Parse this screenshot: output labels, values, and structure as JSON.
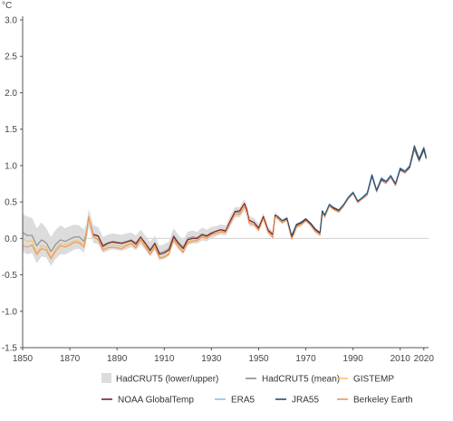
{
  "chart_data": {
    "type": "line",
    "unit": "°C",
    "xlim": [
      1850,
      2022
    ],
    "ylim": [
      -1.5,
      3.0
    ],
    "x_ticks": [
      "1850",
      "1870",
      "1890",
      "1910",
      "1930",
      "1950",
      "1970",
      "1990",
      "2010",
      "2020"
    ],
    "y_ticks": [
      "3.0",
      "2.5",
      "2.0",
      "1.5",
      "1.0",
      "0.5",
      "0.0",
      "-0.5",
      "-1.0",
      "-1.5"
    ],
    "zero_line": true,
    "legend_placement": "bottom",
    "legend": [
      {
        "label": "HadCRUT5 (lower/upper)",
        "kind": "band",
        "color": "#dcdcdc"
      },
      {
        "label": "HadCRUT5 (mean)",
        "kind": "line",
        "color": "#8c8c8c"
      },
      {
        "label": "GISTEMP",
        "kind": "line",
        "color": "#f2c46a"
      },
      {
        "label": "NOAA GlobalTemp",
        "kind": "line",
        "color": "#7a1f2b"
      },
      {
        "label": "ERA5",
        "kind": "line",
        "color": "#7fc8e6"
      },
      {
        "label": "JRA55",
        "kind": "line",
        "color": "#1f4f7a"
      },
      {
        "label": "Berkeley Earth",
        "kind": "line",
        "color": "#f0955a"
      }
    ],
    "x": [
      1850,
      1852,
      1854,
      1856,
      1858,
      1860,
      1862,
      1864,
      1866,
      1868,
      1870,
      1872,
      1874,
      1876,
      1877,
      1878,
      1880,
      1882,
      1884,
      1886,
      1888,
      1890,
      1892,
      1894,
      1896,
      1898,
      1900,
      1902,
      1904,
      1906,
      1908,
      1910,
      1912,
      1914,
      1916,
      1918,
      1920,
      1922,
      1924,
      1926,
      1928,
      1930,
      1932,
      1934,
      1936,
      1938,
      1940,
      1942,
      1944,
      1945,
      1946,
      1948,
      1950,
      1952,
      1954,
      1956,
      1957,
      1958,
      1960,
      1962,
      1964,
      1965,
      1966,
      1968,
      1970,
      1972,
      1974,
      1976,
      1977,
      1978,
      1980,
      1982,
      1984,
      1986,
      1988,
      1990,
      1992,
      1994,
      1996,
      1998,
      2000,
      2002,
      2004,
      2006,
      2008,
      2010,
      2012,
      2014,
      2016,
      2018,
      2020,
      2021
    ],
    "hadcrut_mean": [
      0.08,
      0.04,
      0.04,
      -0.1,
      -0.02,
      -0.06,
      -0.18,
      -0.08,
      -0.02,
      -0.04,
      -0.01,
      0.02,
      0.02,
      -0.04,
      0.08,
      0.28,
      0.06,
      0.04,
      -0.09,
      -0.06,
      -0.04,
      -0.05,
      -0.06,
      -0.04,
      -0.02,
      -0.06,
      0.02,
      -0.06,
      -0.15,
      -0.06,
      -0.2,
      -0.18,
      -0.14,
      0.04,
      -0.05,
      -0.12,
      0.0,
      0.02,
      0.01,
      0.06,
      0.04,
      0.08,
      0.1,
      0.12,
      0.11,
      0.24,
      0.36,
      0.36,
      0.46,
      0.38,
      0.24,
      0.22,
      0.15,
      0.3,
      0.12,
      0.06,
      0.32,
      0.3,
      0.24,
      0.27,
      0.03,
      0.1,
      0.18,
      0.21,
      0.26,
      0.2,
      0.12,
      0.07,
      0.37,
      0.31,
      0.45,
      0.41,
      0.38,
      0.45,
      0.55,
      0.62,
      0.5,
      0.55,
      0.6,
      0.85,
      0.64,
      0.8,
      0.76,
      0.84,
      0.73,
      0.94,
      0.9,
      0.97,
      1.22,
      1.06,
      1.21,
      1.09
    ],
    "gistemp": [
      0.0,
      -0.04,
      -0.03,
      -0.2,
      -0.1,
      -0.12,
      -0.26,
      -0.14,
      -0.07,
      -0.09,
      -0.06,
      -0.03,
      -0.04,
      -0.09,
      0.06,
      0.28,
      0.03,
      0.0,
      -0.14,
      -0.1,
      -0.09,
      -0.1,
      -0.11,
      -0.08,
      -0.05,
      -0.11,
      0.0,
      -0.1,
      -0.2,
      -0.1,
      -0.26,
      -0.24,
      -0.2,
      0.0,
      -0.1,
      -0.17,
      -0.04,
      -0.02,
      -0.02,
      0.03,
      0.02,
      0.06,
      0.08,
      0.1,
      0.09,
      0.22,
      0.34,
      0.34,
      0.46,
      0.37,
      0.22,
      0.2,
      0.12,
      0.28,
      0.09,
      0.02,
      0.3,
      0.28,
      0.22,
      0.26,
      0.0,
      0.07,
      0.16,
      0.19,
      0.25,
      0.19,
      0.1,
      0.05,
      0.36,
      0.3,
      0.45,
      0.4,
      0.37,
      0.45,
      0.56,
      0.63,
      0.5,
      0.56,
      0.61,
      0.88,
      0.66,
      0.83,
      0.77,
      0.86,
      0.74,
      0.97,
      0.92,
      1.0,
      1.28,
      1.1,
      1.26,
      1.14
    ],
    "noaa": [
      null,
      null,
      null,
      null,
      null,
      null,
      null,
      null,
      null,
      null,
      null,
      null,
      null,
      null,
      null,
      null,
      0.05,
      0.03,
      -0.11,
      -0.07,
      -0.05,
      -0.06,
      -0.07,
      -0.05,
      -0.03,
      -0.08,
      0.02,
      -0.07,
      -0.17,
      -0.07,
      -0.22,
      -0.2,
      -0.16,
      0.02,
      -0.07,
      -0.14,
      -0.02,
      0.0,
      0.0,
      0.05,
      0.03,
      0.07,
      0.1,
      0.12,
      0.1,
      0.24,
      0.37,
      0.38,
      0.48,
      0.4,
      0.25,
      0.22,
      0.14,
      0.3,
      0.11,
      0.05,
      0.32,
      0.3,
      0.24,
      0.27,
      0.02,
      0.09,
      0.18,
      0.21,
      0.26,
      0.2,
      0.12,
      0.07,
      0.37,
      0.31,
      0.45,
      0.41,
      0.38,
      0.45,
      0.55,
      0.62,
      0.5,
      0.55,
      0.6,
      0.86,
      0.65,
      0.81,
      0.76,
      0.85,
      0.73,
      0.95,
      0.91,
      0.98,
      1.25,
      1.08,
      1.23,
      1.11
    ],
    "era5": [
      null,
      null,
      null,
      null,
      null,
      null,
      null,
      null,
      null,
      null,
      null,
      null,
      null,
      null,
      null,
      null,
      null,
      null,
      null,
      null,
      null,
      null,
      null,
      null,
      null,
      null,
      null,
      null,
      null,
      null,
      null,
      null,
      null,
      null,
      null,
      null,
      null,
      null,
      null,
      null,
      null,
      null,
      null,
      null,
      null,
      null,
      null,
      null,
      null,
      null,
      null,
      null,
      null,
      null,
      null,
      null,
      null,
      null,
      null,
      null,
      null,
      null,
      null,
      null,
      null,
      null,
      null,
      null,
      null,
      0.32,
      0.46,
      0.42,
      0.39,
      0.47,
      0.57,
      0.64,
      0.52,
      0.57,
      0.63,
      0.88,
      0.67,
      0.84,
      0.79,
      0.87,
      0.76,
      0.97,
      0.93,
      1.0,
      1.26,
      1.1,
      1.25,
      1.12
    ],
    "jra55": [
      null,
      null,
      null,
      null,
      null,
      null,
      null,
      null,
      null,
      null,
      null,
      null,
      null,
      null,
      null,
      null,
      null,
      null,
      null,
      null,
      null,
      null,
      null,
      null,
      null,
      null,
      null,
      null,
      null,
      null,
      null,
      null,
      null,
      null,
      null,
      null,
      null,
      null,
      null,
      null,
      null,
      null,
      null,
      null,
      null,
      null,
      null,
      null,
      null,
      null,
      null,
      null,
      null,
      null,
      null,
      null,
      null,
      0.3,
      0.24,
      0.28,
      0.04,
      0.11,
      0.19,
      0.22,
      0.27,
      0.21,
      0.13,
      0.08,
      0.38,
      0.32,
      0.47,
      0.42,
      0.39,
      0.46,
      0.56,
      0.63,
      0.51,
      0.56,
      0.62,
      0.87,
      0.66,
      0.82,
      0.78,
      0.86,
      0.75,
      0.96,
      0.92,
      0.99,
      1.27,
      1.09,
      1.24,
      1.1
    ],
    "berkeley": [
      -0.1,
      -0.12,
      -0.09,
      -0.22,
      -0.14,
      -0.16,
      -0.28,
      -0.17,
      -0.1,
      -0.12,
      -0.09,
      -0.05,
      -0.06,
      -0.12,
      0.04,
      0.3,
      0.02,
      -0.02,
      -0.16,
      -0.13,
      -0.12,
      -0.13,
      -0.14,
      -0.1,
      -0.07,
      -0.13,
      -0.02,
      -0.12,
      -0.22,
      -0.12,
      -0.27,
      -0.26,
      -0.22,
      -0.02,
      -0.12,
      -0.19,
      -0.06,
      -0.04,
      -0.03,
      0.02,
      0.0,
      0.05,
      0.07,
      0.09,
      0.08,
      0.21,
      0.33,
      0.33,
      0.44,
      0.36,
      0.21,
      0.19,
      0.11,
      0.27,
      0.08,
      0.01,
      0.29,
      0.27,
      0.21,
      0.25,
      -0.01,
      0.06,
      0.15,
      0.18,
      0.24,
      0.18,
      0.09,
      0.04,
      0.35,
      0.29,
      0.44,
      0.39,
      0.36,
      0.44,
      0.55,
      0.62,
      0.49,
      0.55,
      0.6,
      0.87,
      0.65,
      0.82,
      0.76,
      0.85,
      0.73,
      0.96,
      0.91,
      0.99,
      1.27,
      1.09,
      1.25,
      1.13
    ],
    "band_lower": [
      -0.18,
      -0.22,
      -0.2,
      -0.34,
      -0.25,
      -0.26,
      -0.38,
      -0.28,
      -0.22,
      -0.22,
      -0.19,
      -0.15,
      -0.14,
      -0.2,
      -0.04,
      0.16,
      -0.06,
      -0.08,
      -0.2,
      -0.17,
      -0.15,
      -0.16,
      -0.17,
      -0.15,
      -0.12,
      -0.16,
      -0.08,
      -0.16,
      -0.25,
      -0.16,
      -0.3,
      -0.28,
      -0.24,
      -0.06,
      -0.15,
      -0.22,
      -0.09,
      -0.07,
      -0.07,
      -0.03,
      -0.04,
      0.0,
      0.03,
      0.05,
      0.04,
      0.17,
      0.29,
      0.29,
      0.38,
      0.3,
      0.17,
      0.16,
      0.1,
      0.25,
      0.08,
      0.02,
      0.28,
      0.27,
      0.21,
      0.24,
      0.0,
      0.07,
      0.15,
      0.18,
      0.24,
      0.18,
      0.1,
      0.05,
      0.35,
      0.29,
      0.43,
      0.39,
      0.36,
      0.43,
      0.53,
      0.6,
      0.48,
      0.53,
      0.58,
      0.83,
      0.62,
      0.78,
      0.74,
      0.82,
      0.71,
      0.92,
      0.88,
      0.95,
      1.2,
      1.04,
      1.19,
      1.07
    ],
    "band_upper": [
      0.34,
      0.3,
      0.28,
      0.14,
      0.22,
      0.14,
      0.02,
      0.12,
      0.18,
      0.14,
      0.17,
      0.19,
      0.18,
      0.12,
      0.2,
      0.4,
      0.18,
      0.16,
      0.02,
      0.05,
      0.07,
      0.06,
      0.05,
      0.07,
      0.08,
      0.04,
      0.12,
      0.04,
      -0.05,
      0.04,
      -0.1,
      -0.08,
      -0.04,
      0.14,
      0.05,
      -0.02,
      0.09,
      0.11,
      0.09,
      0.15,
      0.12,
      0.16,
      0.17,
      0.19,
      0.18,
      0.31,
      0.43,
      0.43,
      0.54,
      0.46,
      0.31,
      0.28,
      0.2,
      0.35,
      0.16,
      0.1,
      0.36,
      0.33,
      0.27,
      0.3,
      0.06,
      0.13,
      0.21,
      0.24,
      0.28,
      0.22,
      0.14,
      0.09,
      0.39,
      0.33,
      0.47,
      0.43,
      0.4,
      0.47,
      0.57,
      0.64,
      0.52,
      0.57,
      0.62,
      0.87,
      0.66,
      0.82,
      0.78,
      0.86,
      0.75,
      0.96,
      0.92,
      0.99,
      1.24,
      1.08,
      1.23,
      1.11
    ]
  }
}
